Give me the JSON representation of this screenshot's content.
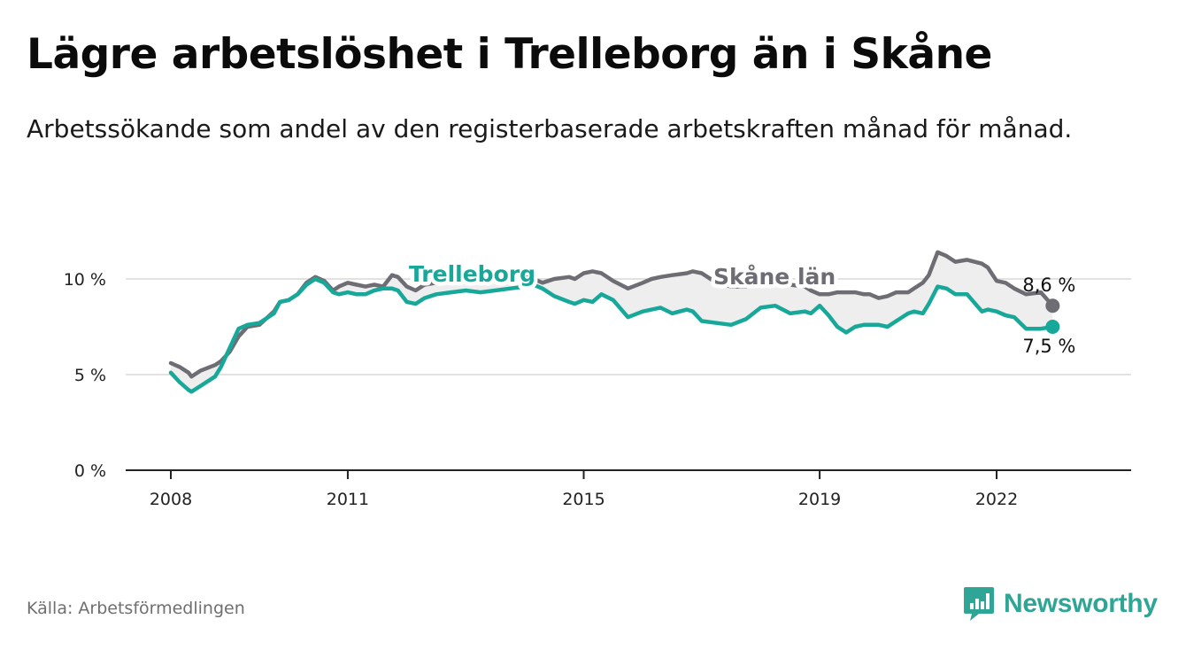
{
  "title": "Lägre arbetslöshet i Trelleborg än i Skåne",
  "subtitle": "Arbetssökande som andel av den registerbaserade arbetskraften månad för månad.",
  "source": "Källa: Arbetsförmedlingen",
  "brand": {
    "name": "Newsworthy",
    "icon": "newsworthy-logo-icon",
    "color": "#2fa596"
  },
  "colors": {
    "trelleborg": "#18a89a",
    "skane": "#6e6d73",
    "band": "#eeeeee",
    "grid": "#d9d9d9",
    "axis": "#222222"
  },
  "chart_data": {
    "type": "line",
    "title": "Lägre arbetslöshet i Trelleborg än i Skåne",
    "xlabel": "",
    "ylabel": "",
    "ylim": [
      0,
      10
    ],
    "xlim": [
      2008,
      2023.5
    ],
    "y_ticks": [
      {
        "value": 0,
        "label": "0 %"
      },
      {
        "value": 5,
        "label": "5 %"
      },
      {
        "value": 10,
        "label": "10 %"
      }
    ],
    "x_ticks": [
      {
        "value": 2008,
        "label": "2008"
      },
      {
        "value": 2011,
        "label": "2011"
      },
      {
        "value": 2015,
        "label": "2015"
      },
      {
        "value": 2019,
        "label": "2019"
      },
      {
        "value": 2022,
        "label": "2022"
      }
    ],
    "series": [
      {
        "name": "Skåne län",
        "label": "Skåne län",
        "end_label": "8,6 %",
        "x": [
          2008.0,
          2008.15,
          2008.3,
          2008.35,
          2008.5,
          2008.75,
          2008.85,
          2009.0,
          2009.15,
          2009.3,
          2009.5,
          2009.75,
          2009.85,
          2010.0,
          2010.15,
          2010.3,
          2010.45,
          2010.6,
          2010.75,
          2010.85,
          2011.0,
          2011.15,
          2011.3,
          2011.45,
          2011.6,
          2011.75,
          2011.85,
          2012.0,
          2012.15,
          2012.3,
          2012.5,
          2012.75,
          2013.0,
          2013.25,
          2013.5,
          2013.75,
          2014.0,
          2014.15,
          2014.3,
          2014.5,
          2014.75,
          2014.85,
          2015.0,
          2015.15,
          2015.3,
          2015.5,
          2015.75,
          2016.0,
          2016.15,
          2016.3,
          2016.5,
          2016.75,
          2016.85,
          2017.0,
          2017.25,
          2017.5,
          2017.75,
          2018.0,
          2018.25,
          2018.5,
          2018.75,
          2018.85,
          2019.0,
          2019.15,
          2019.3,
          2019.45,
          2019.6,
          2019.75,
          2019.85,
          2020.0,
          2020.15,
          2020.3,
          2020.5,
          2020.6,
          2020.75,
          2020.85,
          2021.0,
          2021.15,
          2021.3,
          2021.5,
          2021.75,
          2021.85,
          2022.0,
          2022.15,
          2022.3,
          2022.5,
          2022.75,
          2022.95
        ],
        "values": [
          5.6,
          5.4,
          5.1,
          4.9,
          5.2,
          5.5,
          5.7,
          6.2,
          7.0,
          7.5,
          7.6,
          8.3,
          8.8,
          8.9,
          9.2,
          9.8,
          10.1,
          9.9,
          9.4,
          9.6,
          9.8,
          9.7,
          9.6,
          9.7,
          9.6,
          10.2,
          10.1,
          9.6,
          9.4,
          9.7,
          9.8,
          9.8,
          9.9,
          10.0,
          10.0,
          10.0,
          10.1,
          10.0,
          9.8,
          10.0,
          10.1,
          10.0,
          10.3,
          10.4,
          10.3,
          9.9,
          9.5,
          9.8,
          10.0,
          10.1,
          10.2,
          10.3,
          10.4,
          10.3,
          9.8,
          9.6,
          9.6,
          9.8,
          9.9,
          9.7,
          9.6,
          9.4,
          9.2,
          9.2,
          9.3,
          9.3,
          9.3,
          9.2,
          9.2,
          9.0,
          9.1,
          9.3,
          9.3,
          9.5,
          9.8,
          10.2,
          11.4,
          11.2,
          10.9,
          11.0,
          10.8,
          10.6,
          9.9,
          9.8,
          9.5,
          9.2,
          9.3,
          8.6
        ]
      },
      {
        "name": "Trelleborg",
        "label": "Trelleborg",
        "end_label": "7,5 %",
        "x": [
          2008.0,
          2008.15,
          2008.3,
          2008.35,
          2008.5,
          2008.75,
          2008.85,
          2009.0,
          2009.15,
          2009.3,
          2009.5,
          2009.75,
          2009.85,
          2010.0,
          2010.15,
          2010.3,
          2010.45,
          2010.6,
          2010.75,
          2010.85,
          2011.0,
          2011.15,
          2011.3,
          2011.45,
          2011.6,
          2011.75,
          2011.85,
          2012.0,
          2012.15,
          2012.3,
          2012.5,
          2012.75,
          2013.0,
          2013.25,
          2013.5,
          2013.75,
          2014.0,
          2014.15,
          2014.3,
          2014.5,
          2014.75,
          2014.85,
          2015.0,
          2015.15,
          2015.3,
          2015.5,
          2015.75,
          2016.0,
          2016.15,
          2016.3,
          2016.5,
          2016.75,
          2016.85,
          2017.0,
          2017.25,
          2017.5,
          2017.75,
          2018.0,
          2018.25,
          2018.5,
          2018.75,
          2018.85,
          2019.0,
          2019.15,
          2019.3,
          2019.45,
          2019.6,
          2019.75,
          2019.85,
          2020.0,
          2020.15,
          2020.3,
          2020.5,
          2020.6,
          2020.75,
          2020.85,
          2021.0,
          2021.15,
          2021.3,
          2021.5,
          2021.75,
          2021.85,
          2022.0,
          2022.15,
          2022.3,
          2022.5,
          2022.75,
          2022.95
        ],
        "values": [
          5.1,
          4.6,
          4.2,
          4.1,
          4.4,
          4.9,
          5.4,
          6.4,
          7.4,
          7.6,
          7.7,
          8.2,
          8.8,
          8.9,
          9.2,
          9.7,
          10.0,
          9.8,
          9.3,
          9.2,
          9.3,
          9.2,
          9.2,
          9.4,
          9.5,
          9.5,
          9.4,
          8.8,
          8.7,
          9.0,
          9.2,
          9.3,
          9.4,
          9.3,
          9.4,
          9.5,
          9.6,
          9.7,
          9.5,
          9.1,
          8.8,
          8.7,
          8.9,
          8.8,
          9.2,
          8.9,
          8.0,
          8.3,
          8.4,
          8.5,
          8.2,
          8.4,
          8.3,
          7.8,
          7.7,
          7.6,
          7.9,
          8.5,
          8.6,
          8.2,
          8.3,
          8.2,
          8.6,
          8.1,
          7.5,
          7.2,
          7.5,
          7.6,
          7.6,
          7.6,
          7.5,
          7.8,
          8.2,
          8.3,
          8.2,
          8.7,
          9.6,
          9.5,
          9.2,
          9.2,
          8.3,
          8.4,
          8.3,
          8.1,
          8.0,
          7.4,
          7.4,
          7.5
        ]
      }
    ]
  }
}
